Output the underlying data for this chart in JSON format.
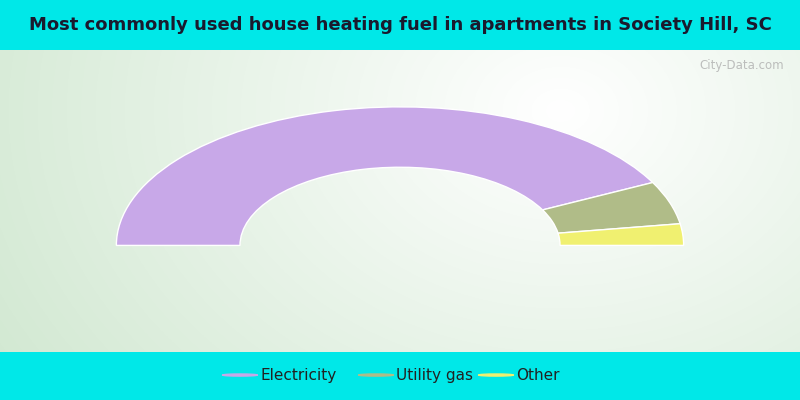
{
  "title": "Most commonly used house heating fuel in apartments in Society Hill, SC",
  "title_color": "#1a1a2e",
  "title_fontsize": 13,
  "background_outer": "#00e8e8",
  "segments": [
    {
      "label": "Electricity",
      "value": 85,
      "color": "#c8a8e8"
    },
    {
      "label": "Utility gas",
      "value": 10,
      "color": "#b0bc88"
    },
    {
      "label": "Other",
      "value": 5,
      "color": "#f0f070"
    }
  ],
  "legend_fontsize": 11,
  "r_outer": 0.78,
  "r_inner": 0.44,
  "watermark": "City-Data.com"
}
